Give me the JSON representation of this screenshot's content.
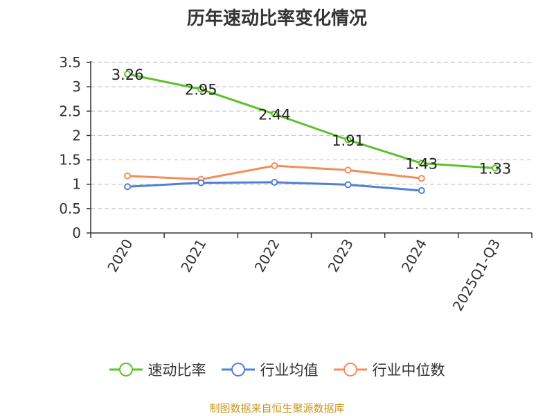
{
  "chart_data": {
    "type": "line",
    "title": "历年速动比率变化情况",
    "categories": [
      "2020",
      "2021",
      "2022",
      "2023",
      "2024",
      "2025Q1-Q3"
    ],
    "ylim": [
      0,
      3.5
    ],
    "yticks": [
      "0",
      "0.5",
      "1",
      "1.5",
      "2",
      "2.5",
      "3",
      "3.5"
    ],
    "grid": true,
    "legend_position": "bottom",
    "series": [
      {
        "name": "速动比率",
        "color": "#5cc12b",
        "values": [
          3.26,
          2.95,
          2.44,
          1.91,
          1.43,
          1.33
        ],
        "labels": [
          "3.26",
          "2.95",
          "2.44",
          "1.91",
          "1.43",
          "1.33"
        ]
      },
      {
        "name": "行业均值",
        "color": "#4f7fdb",
        "values": [
          0.95,
          1.03,
          1.04,
          0.99,
          0.87,
          null
        ]
      },
      {
        "name": "行业中位数",
        "color": "#f48d5a",
        "values": [
          1.17,
          1.1,
          1.38,
          1.29,
          1.12,
          null
        ]
      }
    ]
  },
  "source": "制图数据来自恒生聚源数据库"
}
